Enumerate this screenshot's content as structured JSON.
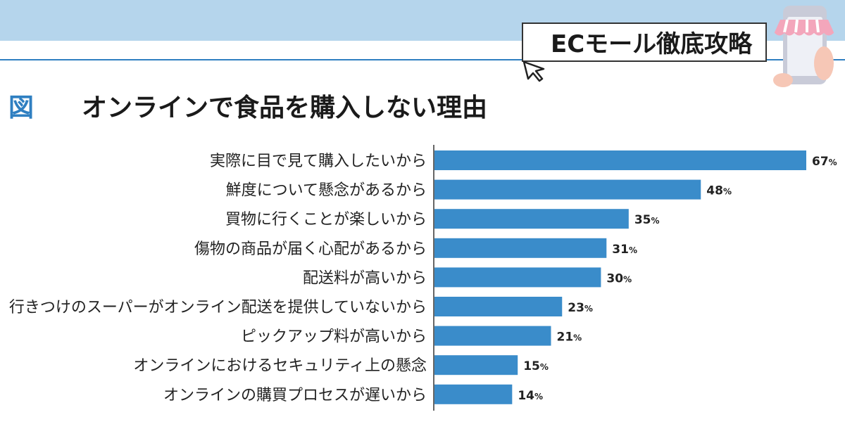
{
  "header": {
    "series_title": "ECモール徹底攻略",
    "figure_label": "図",
    "figure_title": "オンラインで食品を購入しない理由"
  },
  "icons": {
    "cursor": "cursor-arrow-icon",
    "phone": "smartphone-shop-icon"
  },
  "colors": {
    "bar": "#3a8cca",
    "band": "#b5d5ec",
    "accent": "#2f7fc1"
  },
  "chart_data": {
    "type": "bar",
    "orientation": "horizontal",
    "categories": [
      "実際に目で見て購入したいから",
      "鮮度について懸念があるから",
      "買物に行くことが楽しいから",
      "傷物の商品が届く心配があるから",
      "配送料が高いから",
      "行きつけのスーパーがオンライン配送を提供していないから",
      "ピックアップ料が高いから",
      "オンラインにおけるセキュリティ上の懸念",
      "オンラインの購買プロセスが遅いから"
    ],
    "values": [
      67,
      48,
      35,
      31,
      30,
      23,
      21,
      15,
      14
    ],
    "unit": "%",
    "xlim": [
      0,
      67
    ],
    "grid": false,
    "legend": "none"
  }
}
